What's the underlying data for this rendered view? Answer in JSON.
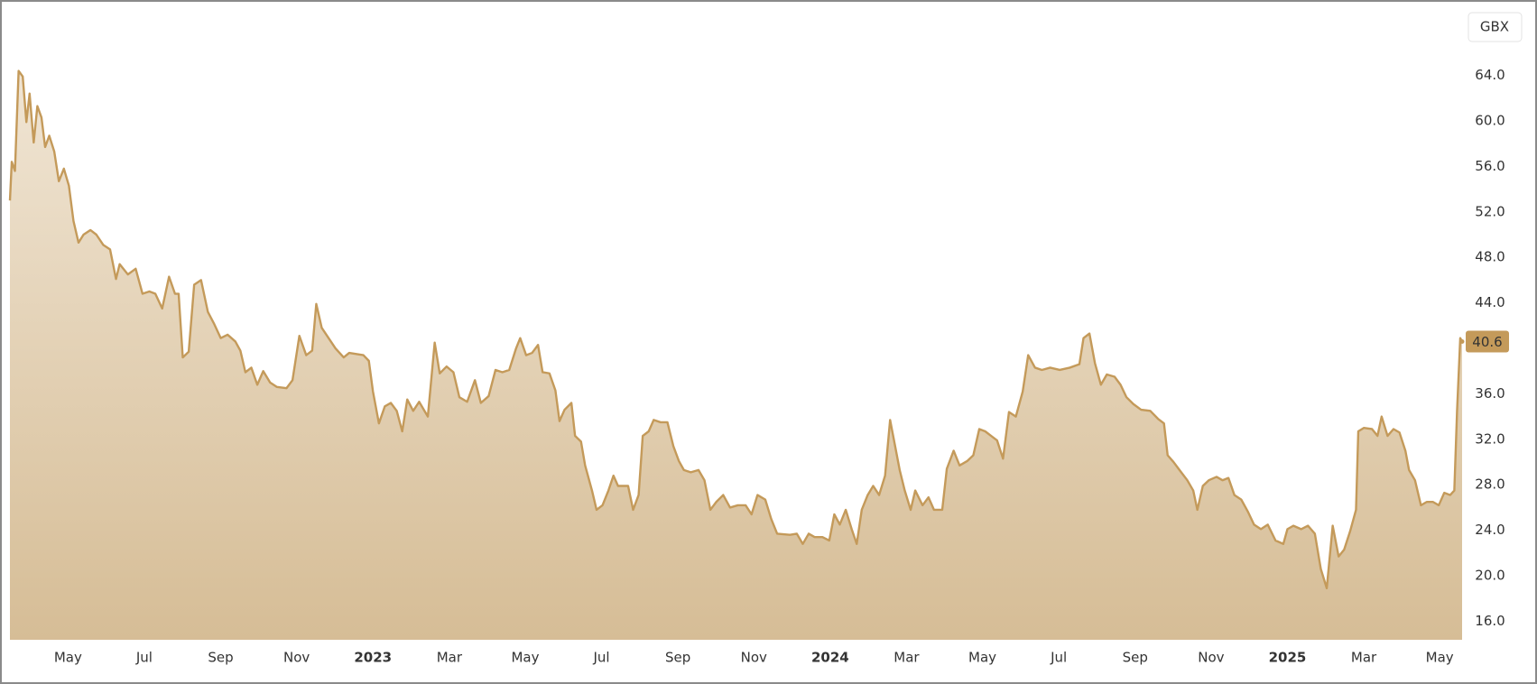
{
  "chart_data": {
    "type": "area",
    "currency": "GBX",
    "price_label": "40.6",
    "color": "#c49a5a",
    "fill_top": "#f0e5d4",
    "fill_bottom": "#d6bd96",
    "grid": false,
    "xlim": [
      2022.206,
      2025.382
    ],
    "ylim": [
      14.37,
      69.76
    ],
    "xticks": [
      {
        "value": 2022.333,
        "label": "May"
      },
      {
        "value": 2022.5,
        "label": "Jul"
      },
      {
        "value": 2022.667,
        "label": "Sep"
      },
      {
        "value": 2022.833,
        "label": "Nov"
      },
      2023,
      {
        "value": 2023.167,
        "label": "Mar"
      },
      {
        "value": 2023.333,
        "label": "May"
      },
      {
        "value": 2023.5,
        "label": "Jul"
      },
      {
        "value": 2023.667,
        "label": "Sep"
      },
      {
        "value": 2023.833,
        "label": "Nov"
      },
      2024,
      {
        "value": 2024.167,
        "label": "Mar"
      },
      {
        "value": 2024.333,
        "label": "May"
      },
      {
        "value": 2024.5,
        "label": "Jul"
      },
      {
        "value": 2024.667,
        "label": "Sep"
      },
      {
        "value": 2024.833,
        "label": "Nov"
      },
      2025,
      {
        "value": 2025.167,
        "label": "Mar"
      },
      {
        "value": 2025.333,
        "label": "May"
      }
    ],
    "yticks": [
      {
        "value": 16,
        "label": "16.0"
      },
      {
        "value": 20,
        "label": "20.0"
      },
      {
        "value": 24,
        "label": "24.0"
      },
      {
        "value": 28,
        "label": "28.0"
      },
      {
        "value": 32,
        "label": "32.0"
      },
      {
        "value": 36,
        "label": "36.0"
      },
      {
        "value": 40,
        "label": "40.0"
      },
      {
        "value": 44,
        "label": "44.0"
      },
      {
        "value": 48,
        "label": "48.0"
      },
      {
        "value": 52,
        "label": "52.0"
      },
      {
        "value": 56,
        "label": "56.0"
      },
      {
        "value": 60,
        "label": "60.0"
      },
      {
        "value": 64,
        "label": "64.0"
      }
    ],
    "x": [
      2022.206,
      2022.21,
      2022.217,
      2022.225,
      2022.234,
      2022.242,
      2022.249,
      2022.258,
      2022.266,
      2022.275,
      2022.283,
      2022.292,
      2022.303,
      2022.313,
      2022.324,
      2022.335,
      2022.345,
      2022.356,
      2022.367,
      2022.382,
      2022.395,
      2022.41,
      2022.425,
      2022.438,
      2022.446,
      2022.464,
      2022.481,
      2022.496,
      2022.511,
      2022.524,
      2022.539,
      2022.554,
      2022.567,
      2022.575,
      2022.584,
      2022.597,
      2022.609,
      2022.624,
      2022.639,
      2022.652,
      2022.667,
      2022.682,
      2022.699,
      2022.71,
      2022.721,
      2022.734,
      2022.747,
      2022.76,
      2022.775,
      2022.79,
      2022.811,
      2022.824,
      2022.839,
      2022.854,
      2022.867,
      2022.876,
      2022.888,
      2022.903,
      2022.918,
      2022.936,
      2022.948,
      2022.979,
      2022.991,
      2023.0,
      2023.013,
      2023.026,
      2023.039,
      2023.052,
      2023.064,
      2023.075,
      2023.088,
      2023.101,
      2023.12,
      2023.135,
      2023.146,
      2023.161,
      2023.176,
      2023.189,
      2023.206,
      2023.223,
      2023.236,
      2023.253,
      2023.268,
      2023.283,
      2023.298,
      2023.313,
      2023.322,
      2023.335,
      2023.348,
      2023.361,
      2023.371,
      2023.386,
      2023.399,
      2023.408,
      2023.419,
      2023.434,
      2023.442,
      2023.455,
      2023.464,
      2023.479,
      2023.489,
      2023.502,
      2023.515,
      2023.526,
      2023.536,
      2023.558,
      2023.569,
      2023.581,
      2023.59,
      2023.603,
      2023.614,
      2023.629,
      2023.644,
      2023.657,
      2023.669,
      2023.68,
      2023.695,
      2023.712,
      2023.725,
      2023.738,
      2023.751,
      2023.766,
      2023.781,
      2023.798,
      2023.815,
      2023.828,
      2023.841,
      2023.858,
      2023.871,
      2023.884,
      2023.912,
      2023.927,
      2023.94,
      2023.953,
      2023.966,
      2023.983,
      2023.998,
      2024.009,
      2024.021,
      2024.034,
      2024.047,
      2024.058,
      2024.069,
      2024.082,
      2024.094,
      2024.107,
      2024.12,
      2024.131,
      2024.142,
      2024.152,
      2024.163,
      2024.176,
      2024.186,
      2024.202,
      2024.215,
      2024.227,
      2024.245,
      2024.255,
      2024.27,
      2024.283,
      2024.3,
      2024.313,
      2024.326,
      2024.339,
      2024.352,
      2024.365,
      2024.378,
      2024.391,
      2024.406,
      2024.421,
      2024.433,
      2024.448,
      2024.463,
      2024.481,
      2024.502,
      2024.524,
      2024.545,
      2024.554,
      2024.567,
      2024.579,
      2024.592,
      2024.605,
      2024.622,
      2024.635,
      2024.648,
      2024.663,
      2024.68,
      2024.7,
      2024.717,
      2024.73,
      2024.738,
      2024.751,
      2024.764,
      2024.781,
      2024.794,
      2024.803,
      2024.815,
      2024.828,
      2024.845,
      2024.858,
      2024.871,
      2024.884,
      2024.899,
      2024.914,
      2024.927,
      2024.942,
      2024.957,
      2024.974,
      2024.991,
      2025.0,
      2025.013,
      2025.03,
      2025.045,
      2025.06,
      2025.073,
      2025.086,
      2025.099,
      2025.112,
      2025.124,
      2025.137,
      2025.15,
      2025.155,
      2025.167,
      2025.185,
      2025.197,
      2025.206,
      2025.219,
      2025.232,
      2025.245,
      2025.258,
      2025.266,
      2025.279,
      2025.292,
      2025.305,
      2025.318,
      2025.331,
      2025.343,
      2025.356,
      2025.365,
      2025.371,
      2025.378,
      2025.382
    ],
    "values": [
      53.0,
      56.4,
      55.6,
      64.4,
      63.9,
      59.9,
      62.4,
      58.1,
      61.3,
      60.3,
      57.7,
      58.7,
      57.3,
      54.7,
      55.8,
      54.3,
      51.2,
      49.3,
      50.0,
      50.4,
      50.0,
      49.1,
      48.7,
      46.1,
      47.4,
      46.5,
      47.0,
      44.8,
      45.0,
      44.8,
      43.5,
      46.3,
      44.8,
      44.8,
      39.2,
      39.7,
      45.6,
      46.0,
      43.2,
      42.2,
      40.9,
      41.2,
      40.6,
      39.8,
      37.9,
      38.3,
      36.8,
      38.0,
      37.0,
      36.6,
      36.5,
      37.2,
      41.1,
      39.4,
      39.8,
      43.9,
      41.8,
      40.9,
      40.0,
      39.2,
      39.6,
      39.4,
      38.9,
      36.2,
      33.4,
      34.9,
      35.2,
      34.5,
      32.7,
      35.5,
      34.5,
      35.3,
      34.0,
      40.5,
      37.8,
      38.4,
      37.9,
      35.7,
      35.3,
      37.2,
      35.2,
      35.8,
      38.1,
      37.9,
      38.1,
      40.0,
      40.9,
      39.4,
      39.6,
      40.3,
      37.9,
      37.8,
      36.3,
      33.6,
      34.6,
      35.2,
      32.3,
      31.8,
      29.7,
      27.5,
      25.8,
      26.2,
      27.5,
      28.8,
      27.9,
      27.9,
      25.8,
      27.1,
      32.3,
      32.7,
      33.7,
      33.5,
      33.5,
      31.4,
      30.1,
      29.3,
      29.1,
      29.3,
      28.4,
      25.8,
      26.5,
      27.1,
      26.0,
      26.2,
      26.2,
      25.4,
      27.1,
      26.7,
      25.0,
      23.7,
      23.6,
      23.7,
      22.8,
      23.7,
      23.4,
      23.4,
      23.1,
      25.4,
      24.5,
      25.8,
      24.1,
      22.8,
      25.8,
      27.1,
      27.9,
      27.1,
      28.8,
      33.7,
      31.4,
      29.3,
      27.5,
      25.8,
      27.5,
      26.2,
      26.9,
      25.8,
      25.8,
      29.4,
      31.0,
      29.7,
      30.1,
      30.6,
      32.9,
      32.7,
      32.3,
      31.9,
      30.3,
      34.4,
      34.0,
      36.2,
      39.4,
      38.3,
      38.1,
      38.3,
      38.1,
      38.3,
      38.6,
      40.9,
      41.3,
      38.7,
      36.8,
      37.7,
      37.5,
      36.8,
      35.7,
      35.1,
      34.6,
      34.5,
      33.8,
      33.4,
      30.6,
      30.0,
      29.3,
      28.4,
      27.5,
      25.8,
      27.9,
      28.4,
      28.7,
      28.4,
      28.6,
      27.1,
      26.7,
      25.6,
      24.5,
      24.1,
      24.5,
      23.1,
      22.8,
      24.1,
      24.4,
      24.1,
      24.4,
      23.7,
      20.6,
      18.9,
      24.4,
      21.7,
      22.3,
      23.9,
      25.8,
      32.7,
      33.0,
      32.9,
      32.3,
      34.0,
      32.3,
      32.9,
      32.6,
      31.0,
      29.3,
      28.4,
      26.2,
      26.5,
      26.5,
      26.2,
      27.3,
      27.1,
      27.5,
      34.5,
      40.9,
      40.6
    ]
  }
}
